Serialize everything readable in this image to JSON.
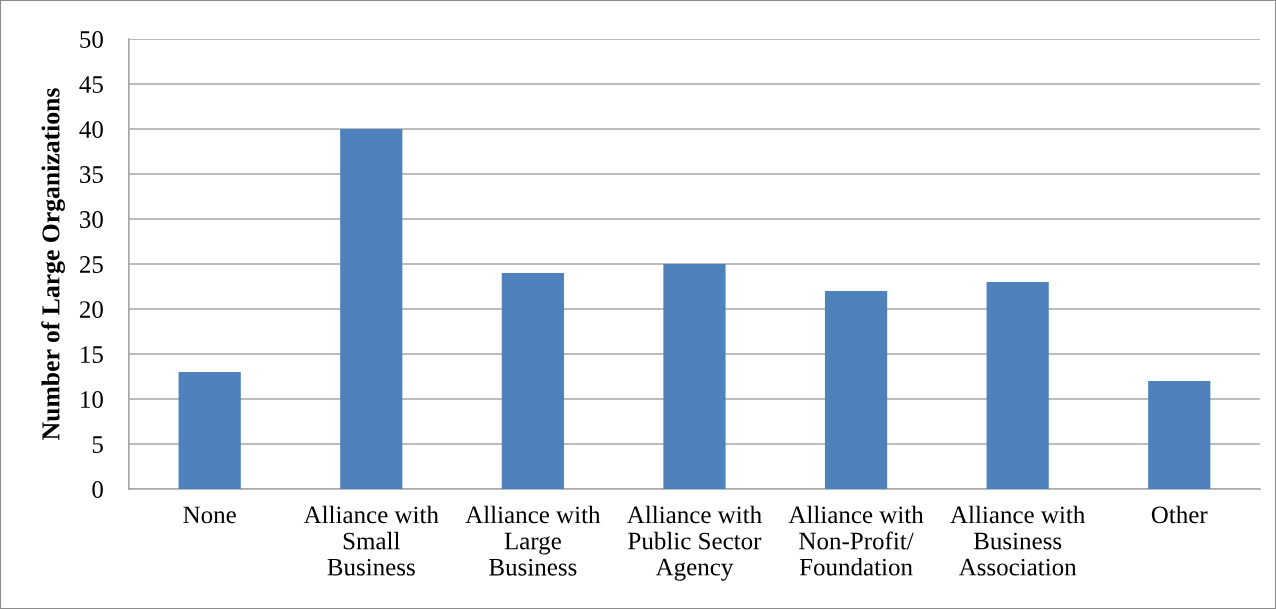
{
  "chart_data": {
    "type": "bar",
    "ylabel": "Number of Large Organizations",
    "categories": [
      "None",
      "Alliance with\nSmall\nBusiness",
      "Alliance with\nLarge\nBusiness",
      "Alliance with\nPublic Sector\nAgency",
      "Alliance with\nNon-Profit/\nFoundation",
      "Alliance with\nBusiness\nAssociation",
      "Other"
    ],
    "values": [
      13,
      40,
      24,
      25,
      22,
      23,
      12
    ],
    "color": "#4f81bd",
    "ylim": [
      0,
      50
    ],
    "yticks": [
      0,
      5,
      10,
      15,
      20,
      25,
      30,
      35,
      40,
      45,
      50
    ],
    "grid": "y"
  }
}
